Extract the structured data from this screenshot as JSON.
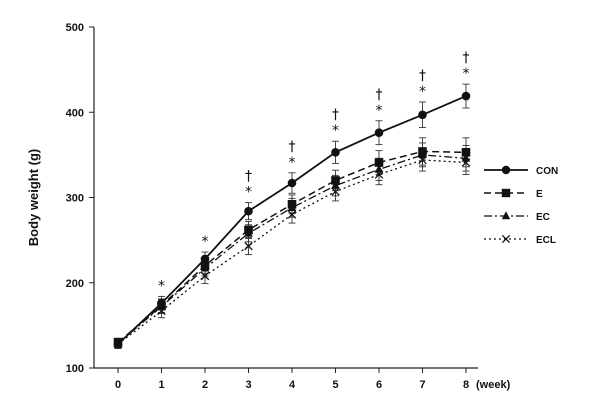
{
  "chart_data": {
    "type": "line",
    "title": "",
    "xlabel": "",
    "x_unit": "(week)",
    "ylabel": "Body weight (g)",
    "x": [
      0,
      1,
      2,
      3,
      4,
      5,
      6,
      7,
      8
    ],
    "x_tick_labels": [
      "0",
      "1",
      "2",
      "3",
      "4",
      "5",
      "6",
      "7",
      "8"
    ],
    "ylim": [
      100,
      500
    ],
    "y_ticks": [
      100,
      200,
      300,
      400,
      500
    ],
    "y_tick_labels": [
      "100",
      "200",
      "300",
      "400",
      "500"
    ],
    "grid": false,
    "legend_position": "right",
    "series": [
      {
        "name": "CON",
        "marker": "circle",
        "dash": "solid",
        "values": [
          128,
          176,
          228,
          284,
          317,
          353,
          376,
          397,
          419
        ],
        "errors": [
          5,
          8,
          8,
          10,
          12,
          13,
          14,
          15,
          14
        ]
      },
      {
        "name": "E",
        "marker": "square",
        "dash": "dash",
        "values": [
          130,
          173,
          220,
          262,
          292,
          320,
          341,
          354,
          353
        ],
        "errors": [
          5,
          8,
          9,
          10,
          11,
          12,
          14,
          16,
          17
        ]
      },
      {
        "name": "EC",
        "marker": "triangle",
        "dash": "dashdot",
        "values": [
          129,
          172,
          217,
          258,
          288,
          314,
          333,
          350,
          346
        ],
        "errors": [
          5,
          8,
          9,
          10,
          11,
          12,
          13,
          14,
          15
        ]
      },
      {
        "name": "ECL",
        "marker": "x",
        "dash": "dot",
        "values": [
          128,
          167,
          208,
          243,
          280,
          307,
          327,
          344,
          341
        ],
        "errors": [
          5,
          8,
          9,
          10,
          10,
          11,
          12,
          13,
          14
        ]
      }
    ],
    "annotations": [
      {
        "x": 1,
        "y": 176,
        "text": "*"
      },
      {
        "x": 2,
        "y": 228,
        "text": "*"
      },
      {
        "x": 3,
        "y": 284,
        "text": "*"
      },
      {
        "x": 3,
        "y": 284,
        "text": "†"
      },
      {
        "x": 4,
        "y": 317,
        "text": "*"
      },
      {
        "x": 4,
        "y": 317,
        "text": "†"
      },
      {
        "x": 5,
        "y": 353,
        "text": "*"
      },
      {
        "x": 5,
        "y": 353,
        "text": "†"
      },
      {
        "x": 6,
        "y": 376,
        "text": "*"
      },
      {
        "x": 6,
        "y": 376,
        "text": "†"
      },
      {
        "x": 7,
        "y": 397,
        "text": "*"
      },
      {
        "x": 7,
        "y": 397,
        "text": "†"
      },
      {
        "x": 8,
        "y": 419,
        "text": "*"
      },
      {
        "x": 8,
        "y": 419,
        "text": "†"
      }
    ]
  }
}
